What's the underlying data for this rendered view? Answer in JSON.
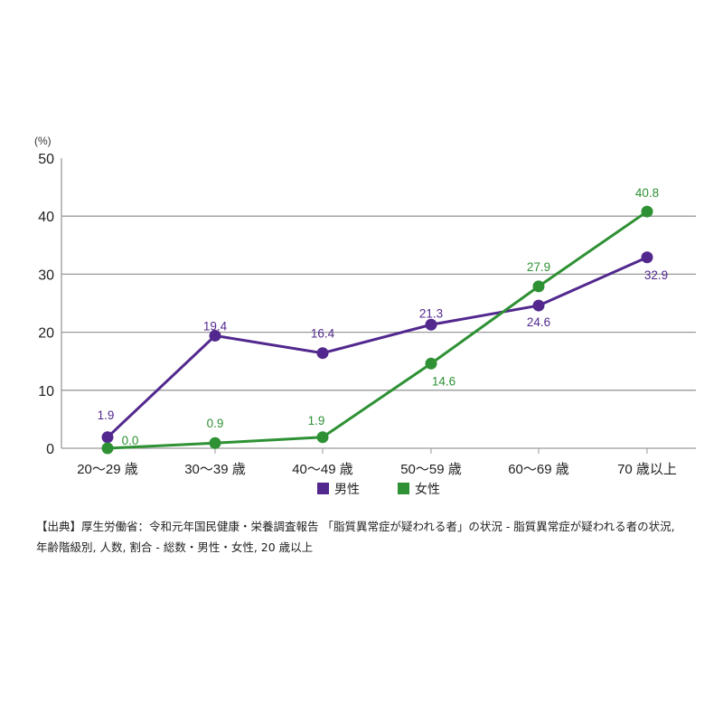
{
  "chart_data": {
    "type": "line",
    "title": "",
    "ylabel": "(%)",
    "xlabel": "",
    "ylim": [
      0,
      50
    ],
    "yticks": [
      0,
      10,
      20,
      30,
      40,
      50
    ],
    "grid": true,
    "legend_position": "bottom",
    "categories": [
      "20〜29 歳",
      "30〜39 歳",
      "40〜49 歳",
      "50〜59 歳",
      "60〜69 歳",
      "70 歳以上"
    ],
    "series": [
      {
        "name": "男性",
        "color": "#52288e",
        "values": [
          1.9,
          19.4,
          16.4,
          21.3,
          24.6,
          32.9
        ],
        "labels": [
          "1.9",
          "19.4",
          "16.4",
          "21.3",
          "24.6",
          "32.9"
        ]
      },
      {
        "name": "女性",
        "color": "#2e9134",
        "values": [
          0.0,
          0.9,
          1.9,
          14.6,
          27.9,
          40.8
        ],
        "labels": [
          "0.0",
          "0.9",
          "1.9",
          "14.6",
          "27.9",
          "40.8"
        ]
      }
    ]
  },
  "source": {
    "line1": "【出典】厚生労働省：令和元年国民健康・栄養調査報告 「脂質異常症が疑われる者」の状況 - 脂質異常症が疑われる者の状況,",
    "line2": "年齢階級別, 人数, 割合 - 総数・男性・女性, 20 歳以上"
  }
}
